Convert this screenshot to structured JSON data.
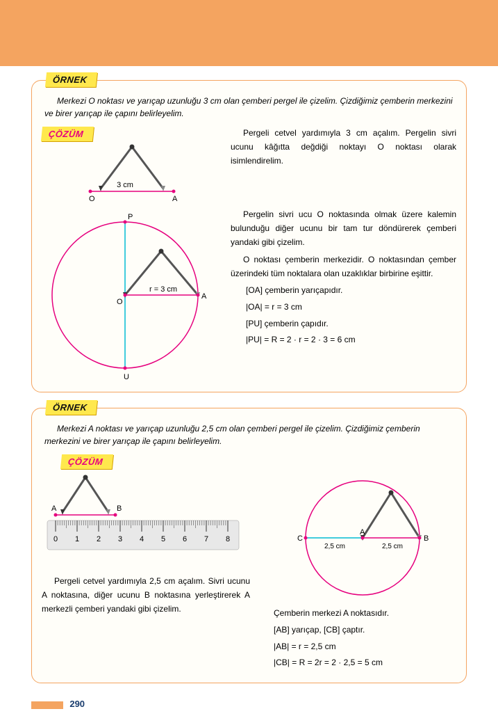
{
  "page_number": "290",
  "labels": {
    "ornek": "ÖRNEK",
    "cozum": "ÇÖZÜM"
  },
  "ex1": {
    "problem": "Merkezi O noktası ve yarıçap uzunluğu 3 cm olan çemberi pergel ile çizelim. Çizdiğimiz çemberin merkezini ve birer yarıçap ile çapını belirleyelim.",
    "fig1": {
      "label_3cm": "3 cm",
      "pt_O": "O",
      "pt_A": "A"
    },
    "fig2": {
      "pt_P": "P",
      "pt_U": "U",
      "pt_O": "O",
      "pt_A": "A",
      "r_label": "r = 3 cm"
    },
    "para1": "Pergeli cetvel yardımıyla 3 cm açalım. Pergelin sivri ucunu kâğıtta değdiği noktayı O noktası olarak isimlendirelim.",
    "para2": "Pergelin sivri ucu O noktasında olmak üzere kalemin bulunduğu diğer ucunu bir tam tur döndürerek çemberi yandaki gibi çizelim.",
    "para3": "O noktası çemberin merkezidir. O noktasından çember üzerindeki tüm noktalara olan uzaklıklar birbirine eşittir.",
    "m1": "[OA] çemberin yarıçapıdır.",
    "m2": "|OA| = r = 3 cm",
    "m3": "[PU] çemberin çapıdır.",
    "m4": "|PU| = R = 2 · r = 2 · 3 = 6 cm"
  },
  "ex2": {
    "problem": "Merkezi A noktası ve yarıçap uzunluğu 2,5 cm olan çemberi pergel ile çizelim. Çizdiğimiz çemberin merkezini ve birer yarıçap ile çapını belirleyelim.",
    "fig1": {
      "pt_A": "A",
      "pt_B": "B",
      "ruler_nums": [
        "0",
        "1",
        "2",
        "3",
        "4",
        "5",
        "6",
        "7",
        "8"
      ]
    },
    "fig2": {
      "pt_C": "C",
      "pt_A": "A",
      "pt_B": "B",
      "d1": "2,5 cm",
      "d2": "2,5 cm"
    },
    "para1": "Pergeli cetvel yardımıyla 2,5 cm açalım. Sivri ucunu A noktasına, diğer ucunu B noktasına yerleştirerek A merkezli çemberi yandaki gibi çizelim.",
    "r1": "Çemberin merkezi A noktasıdır.",
    "r2": "[AB] yarıçap, [CB] çaptır.",
    "r3": "|AB| = r = 2,5 cm",
    "r4": "|CB| = R = 2r = 2 · 2,5 = 5 cm"
  },
  "colors": {
    "orange": "#f4a460",
    "magenta": "#e6007e",
    "cyan": "#00bcd4",
    "point": "#e6007e"
  }
}
